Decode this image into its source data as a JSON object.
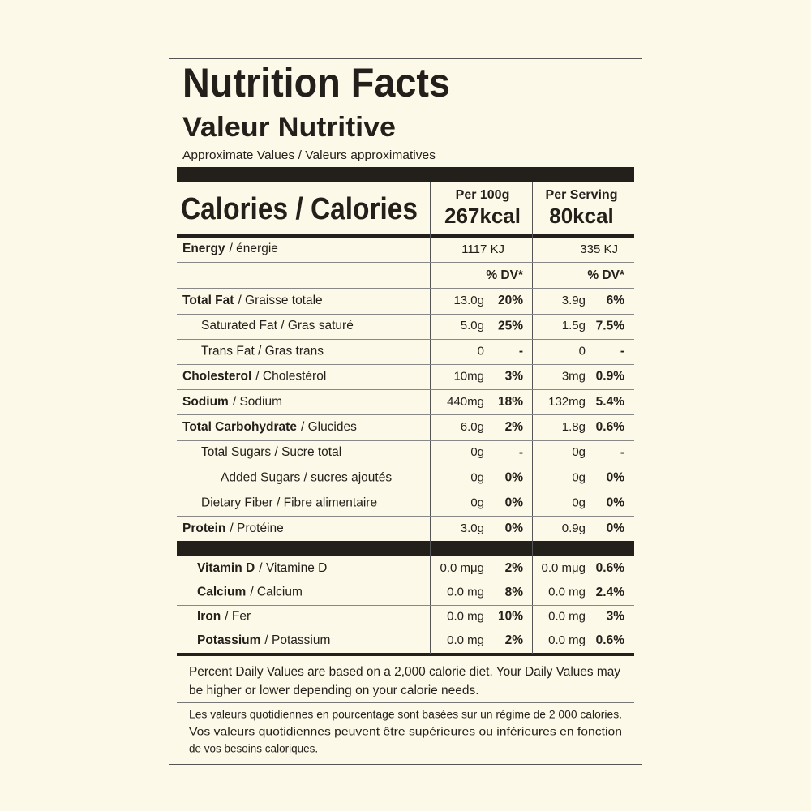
{
  "header": {
    "title": "Nutrition Facts",
    "subtitle": "Valeur Nutritive",
    "note": "Approximate Values / Valeurs approximatives"
  },
  "calories": {
    "label": "Calories / Calories",
    "per100g_header": "Per 100g",
    "per100g": "267kcal",
    "serving_header": "Per Serving",
    "serving": "80kcal"
  },
  "energy": {
    "name": "Energy",
    "name_fr": "/ énergie",
    "per100g": "1117 KJ",
    "serving": "335 KJ"
  },
  "dv_header": [
    "% DV*",
    "% DV*"
  ],
  "rows": [
    {
      "name": "Total Fat",
      "name_fr": "/ Graisse totale",
      "level": 0,
      "amount_100g": "13.0g",
      "dv_100g": "20%",
      "amount_serving": "3.9g",
      "dv_serving": "6%"
    },
    {
      "name": "Saturated Fat / Gras saturé",
      "level": 1,
      "amount_100g": "5.0g",
      "dv_100g": "25%",
      "amount_serving": "1.5g",
      "dv_serving": "7.5%"
    },
    {
      "name": "Trans Fat / Gras trans",
      "level": 1,
      "amount_100g": "0",
      "dv_100g": "-",
      "amount_serving": "0",
      "dv_serving": "-"
    },
    {
      "name": "Cholesterol",
      "name_fr": "/ Cholestérol",
      "level": 0,
      "amount_100g": "10mg",
      "dv_100g": "3%",
      "amount_serving": "3mg",
      "dv_serving": "0.9%"
    },
    {
      "name": "Sodium",
      "name_fr": "/ Sodium",
      "level": 0,
      "amount_100g": "440mg",
      "dv_100g": "18%",
      "amount_serving": "132mg",
      "dv_serving": "5.4%"
    },
    {
      "name": "Total Carbohydrate",
      "name_fr": "/ Glucides",
      "level": 0,
      "amount_100g": "6.0g",
      "dv_100g": "2%",
      "amount_serving": "1.8g",
      "dv_serving": "0.6%"
    },
    {
      "name": "Total Sugars / Sucre total",
      "level": 1,
      "amount_100g": "0g",
      "dv_100g": "-",
      "amount_serving": "0g",
      "dv_serving": "-"
    },
    {
      "name": "Added Sugars / sucres ajoutés",
      "level": 2,
      "amount_100g": "0g",
      "dv_100g": "0%",
      "amount_serving": "0g",
      "dv_serving": "0%"
    },
    {
      "name": "Dietary Fiber / Fibre alimentaire",
      "level": 1,
      "amount_100g": "0g",
      "dv_100g": "0%",
      "amount_serving": "0g",
      "dv_serving": "0%"
    },
    {
      "name": "Protein",
      "name_fr": "/ Protéine",
      "level": 0,
      "amount_100g": "3.0g",
      "dv_100g": "0%",
      "amount_serving": "0.9g",
      "dv_serving": "0%"
    }
  ],
  "vitamins": [
    {
      "name": "Vitamin D",
      "name_fr": "/ Vitamine D",
      "amount_100g": "0.0 mμg",
      "dv_100g": "2%",
      "amount_serving": "0.0 mμg",
      "dv_serving": "0.6%"
    },
    {
      "name": "Calcium",
      "name_fr": "/ Calcium",
      "amount_100g": "0.0 mg",
      "dv_100g": "8%",
      "amount_serving": "0.0 mg",
      "dv_serving": "2.4%"
    },
    {
      "name": "Iron",
      "name_fr": "/ Fer",
      "amount_100g": "0.0 mg",
      "dv_100g": "10%",
      "amount_serving": "0.0 mg",
      "dv_serving": "3%"
    },
    {
      "name": "Potassium",
      "name_fr": "/ Potassium",
      "amount_100g": "0.0 mg",
      "dv_100g": "2%",
      "amount_serving": "0.0 mg",
      "dv_serving": "0.6%"
    }
  ],
  "footer": {
    "en": [
      "Percent Daily Values are based on a 2,000 calorie diet. Your Daily Values may",
      "be higher or lower depending on your calorie needs."
    ],
    "fr": [
      "Les valeurs quotidiennes en pourcentage sont basées sur un régime de 2 000 calories.",
      "Vos valeurs quotidiennes peuvent être supérieures ou inférieures en fonction",
      "de vos besoins caloriques."
    ]
  }
}
